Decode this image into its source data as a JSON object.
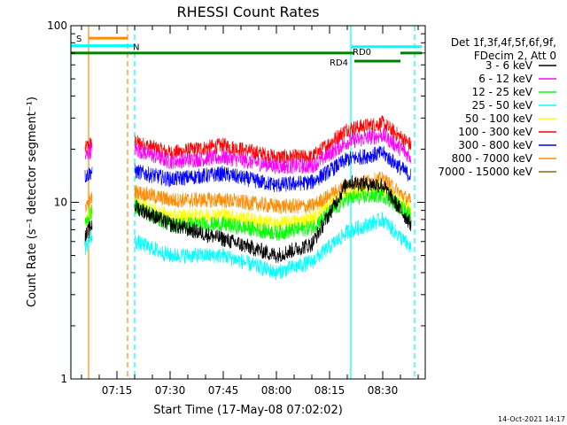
{
  "chart_data": {
    "type": "line",
    "title": "RHESSI Count Rates",
    "xlabel": "Start Time (17-May-08 07:02:02)",
    "ylabel": "Count Rate (s⁻¹ detector segment⁻¹)",
    "y_scale": "log",
    "ylim": [
      1,
      100
    ],
    "xlim": [
      "07:02",
      "08:42"
    ],
    "x_ticks": [
      "07:15",
      "07:30",
      "07:45",
      "08:00",
      "08:15",
      "08:30"
    ],
    "y_ticks": [
      "1",
      "10",
      "100"
    ],
    "legend_position": "top-right",
    "legend_header": [
      "Det 1f,3f,4f,5f,6f,9f,",
      "FDecim 2, Att 0"
    ],
    "series": [
      {
        "name": "3 - 6 keV",
        "color": "#000000",
        "x": [
          "07:06",
          "07:08",
          "07:15",
          "07:20",
          "07:30",
          "07:45",
          "08:00",
          "08:10",
          "08:20",
          "08:30",
          "08:38"
        ],
        "values": [
          6.3,
          7.5,
          null,
          9.5,
          7.5,
          6.2,
          5.0,
          5.8,
          13.0,
          12.5,
          7.5
        ]
      },
      {
        "name": "6 - 12 keV",
        "color": "#ff00ff",
        "x": [
          "07:06",
          "07:08",
          "07:15",
          "07:20",
          "07:30",
          "07:45",
          "08:00",
          "08:10",
          "08:20",
          "08:30",
          "08:38"
        ],
        "values": [
          18,
          20,
          null,
          20,
          17,
          18,
          16,
          16,
          22,
          24,
          18
        ]
      },
      {
        "name": "12 - 25 keV",
        "color": "#00ff00",
        "x": [
          "07:06",
          "07:08",
          "07:15",
          "07:20",
          "07:30",
          "07:45",
          "08:00",
          "08:10",
          "08:20",
          "08:30",
          "08:38"
        ],
        "values": [
          7.5,
          9.0,
          null,
          9.5,
          7.5,
          7.5,
          6.7,
          7.2,
          10.5,
          11.0,
          8.5
        ]
      },
      {
        "name": "25 - 50 keV",
        "color": "#00ffff",
        "x": [
          "07:06",
          "07:08",
          "07:15",
          "07:20",
          "07:30",
          "07:45",
          "08:00",
          "08:10",
          "08:20",
          "08:30",
          "08:38"
        ],
        "values": [
          5.5,
          6.5,
          null,
          6.0,
          5.0,
          5.0,
          4.0,
          4.6,
          6.8,
          8.0,
          5.5
        ]
      },
      {
        "name": "50 - 100 keV",
        "color": "#ffff00",
        "x": [
          "07:06",
          "07:08",
          "07:15",
          "07:20",
          "07:30",
          "07:45",
          "08:00",
          "08:10",
          "08:20",
          "08:30",
          "08:38"
        ],
        "values": [
          8.0,
          9.0,
          null,
          9.8,
          8.3,
          8.5,
          7.5,
          8.0,
          11.5,
          12.0,
          9.0
        ]
      },
      {
        "name": "100 - 300 keV",
        "color": "#ff0000",
        "x": [
          "07:06",
          "07:08",
          "07:15",
          "07:20",
          "07:30",
          "07:45",
          "08:00",
          "08:10",
          "08:20",
          "08:30",
          "08:38"
        ],
        "values": [
          20,
          22,
          null,
          22,
          19,
          21,
          18,
          18,
          26,
          28,
          21
        ]
      },
      {
        "name": "300 - 800 keV",
        "color": "#0000ff",
        "x": [
          "07:06",
          "07:08",
          "07:15",
          "07:20",
          "07:30",
          "07:45",
          "08:00",
          "08:10",
          "08:20",
          "08:30",
          "08:38"
        ],
        "values": [
          14,
          15,
          null,
          15,
          13.5,
          14.5,
          12.5,
          13,
          17.5,
          19,
          14
        ]
      },
      {
        "name": "800 - 7000 keV",
        "color": "#ff8c00",
        "x": [
          "07:06",
          "07:08",
          "07:15",
          "07:20",
          "07:30",
          "07:45",
          "08:00",
          "08:10",
          "08:20",
          "08:30",
          "08:38"
        ],
        "values": [
          9.5,
          10.5,
          null,
          11.5,
          10.3,
          10.3,
          9.5,
          9.5,
          12.5,
          13.5,
          10
        ]
      },
      {
        "name": "7000 - 15000 keV",
        "color": "#8b6914",
        "x": [],
        "values": []
      }
    ],
    "flag_bars": [
      {
        "label": "S",
        "color": "#ff8c00",
        "start": "07:07",
        "end": "07:18",
        "level": 85
      },
      {
        "label": "N",
        "color": "#00ffff",
        "start": "07:02",
        "end": "07:20",
        "level": 77
      },
      {
        "label": "",
        "color": "#008000",
        "start": "07:02",
        "end": "08:22",
        "level": 70
      },
      {
        "label": "RD0",
        "color": "#00ffff",
        "start": "08:21",
        "end": "08:41",
        "level": 76
      },
      {
        "label": "RD4",
        "color": "#008000",
        "start": "08:22",
        "end": "08:35",
        "level": 63
      },
      {
        "label": "",
        "color": "#008000",
        "start": "08:35",
        "end": "08:41",
        "level": 70
      }
    ],
    "vertical_markers": [
      {
        "time": "07:07",
        "color": "#ff8c00",
        "style": "solid"
      },
      {
        "time": "07:18",
        "color": "#ff8c00",
        "style": "dashed"
      },
      {
        "time": "07:20",
        "color": "#00ffff",
        "style": "dashed"
      },
      {
        "time": "08:21",
        "color": "#00ffff",
        "style": "solid"
      },
      {
        "time": "08:39",
        "color": "#00ffff",
        "style": "dashed"
      },
      {
        "time": "07:02",
        "color": "#00ffff",
        "style": "solid"
      }
    ],
    "timestamp": "14-Oct-2021 14:17"
  }
}
